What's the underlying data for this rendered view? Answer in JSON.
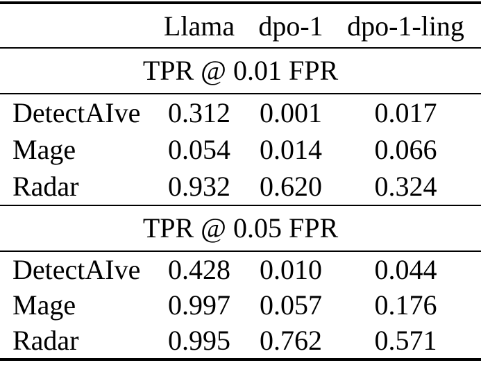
{
  "table": {
    "columns": [
      "Llama",
      "dpo-1",
      "dpo-1-ling"
    ],
    "sections": [
      {
        "title": "TPR @ 0.01 FPR",
        "rows": [
          {
            "label": "DetectAIve",
            "values": [
              "0.312",
              "0.001",
              "0.017"
            ]
          },
          {
            "label": "Mage",
            "values": [
              "0.054",
              "0.014",
              "0.066"
            ]
          },
          {
            "label": "Radar",
            "values": [
              "0.932",
              "0.620",
              "0.324"
            ]
          }
        ]
      },
      {
        "title": "TPR @ 0.05 FPR",
        "rows": [
          {
            "label": "DetectAIve",
            "values": [
              "0.428",
              "0.010",
              "0.044"
            ]
          },
          {
            "label": "Mage",
            "values": [
              "0.997",
              "0.057",
              "0.176"
            ]
          },
          {
            "label": "Radar",
            "values": [
              "0.995",
              "0.762",
              "0.571"
            ]
          }
        ]
      }
    ]
  },
  "colors": {
    "text": "#000000",
    "background": "#ffffff",
    "rule": "#000000"
  },
  "chart_data": {
    "type": "table",
    "title": "",
    "column_headers": [
      "",
      "Llama",
      "dpo-1",
      "dpo-1-ling"
    ],
    "sections": [
      {
        "section_header": "TPR @ 0.01 FPR",
        "rows": [
          [
            "DetectAIve",
            0.312,
            0.001,
            0.017
          ],
          [
            "Mage",
            0.054,
            0.014,
            0.066
          ],
          [
            "Radar",
            0.932,
            0.62,
            0.324
          ]
        ]
      },
      {
        "section_header": "TPR @ 0.05 FPR",
        "rows": [
          [
            "DetectAIve",
            0.428,
            0.01,
            0.044
          ],
          [
            "Mage",
            0.997,
            0.057,
            0.176
          ],
          [
            "Radar",
            0.995,
            0.762,
            0.571
          ]
        ]
      }
    ]
  }
}
